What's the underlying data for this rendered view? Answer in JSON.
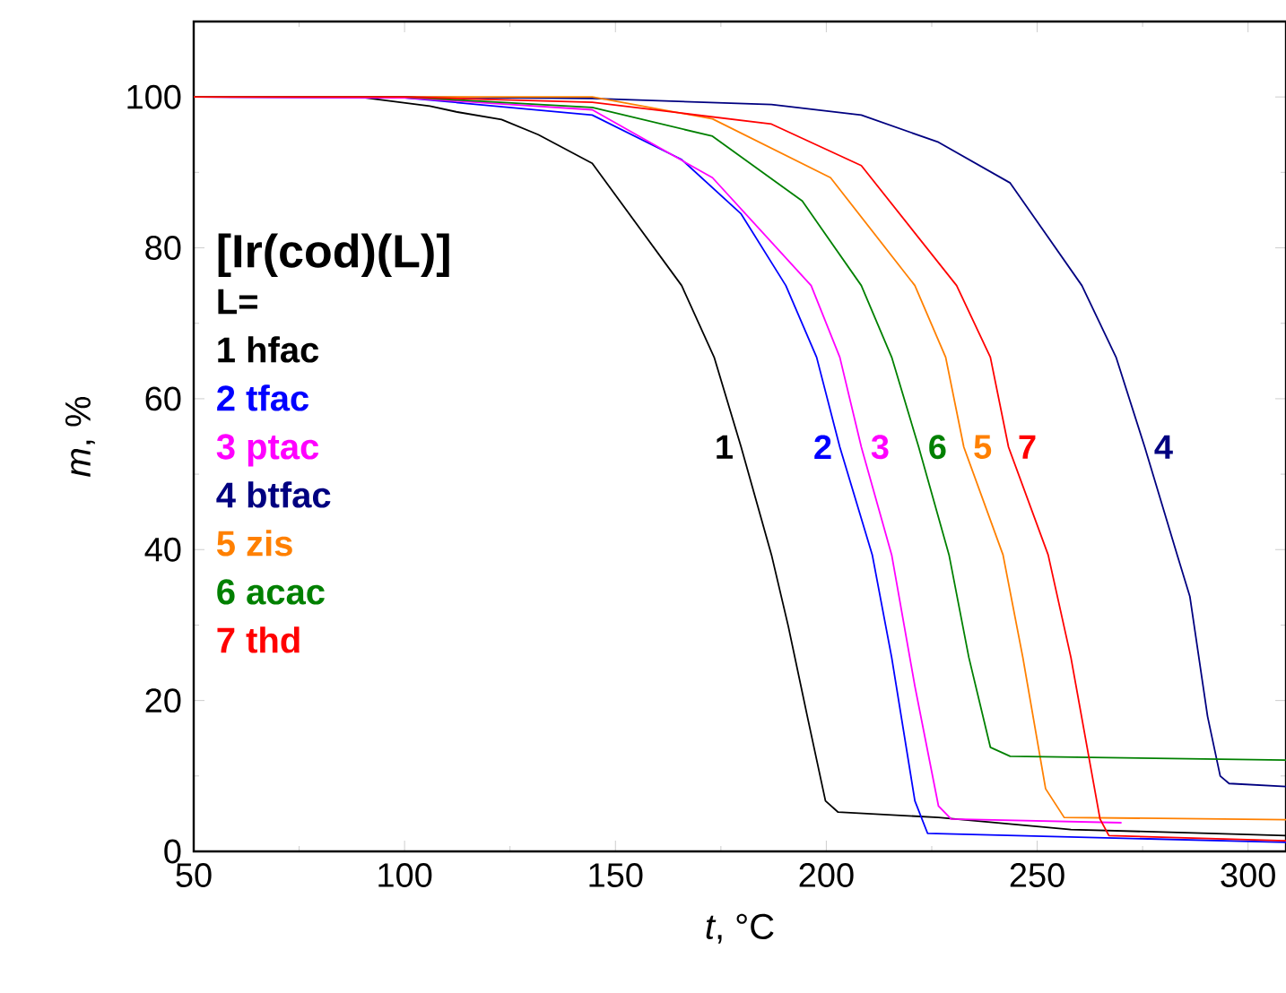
{
  "chart_data": {
    "type": "line",
    "title": "[Ir(cod)(L)]",
    "legend_title": "L=",
    "xlabel": "*t*, °C",
    "ylabel": "*m*, %",
    "xlim": [
      50,
      309
    ],
    "ylim": [
      0,
      110
    ],
    "xticks": [
      50,
      100,
      150,
      200,
      250,
      300
    ],
    "yticks": [
      0,
      20,
      40,
      60,
      80,
      100
    ],
    "legend": "center left",
    "marker": "none",
    "line_style": "solid",
    "grid": false,
    "series": [
      {
        "name": "1 hfac",
        "color": "#000000",
        "x": [
          50,
          89,
          106,
          112.5,
          123,
          131.7,
          144.5,
          165.7,
          173.4,
          179.8,
          187,
          191,
          195.5,
          199.8,
          202.8,
          226.6,
          258,
          309
        ],
        "values": [
          100,
          100,
          98.8,
          98,
          97,
          95,
          91.2,
          75,
          65.5,
          53.6,
          39.3,
          29.8,
          17.9,
          6.7,
          5.2,
          4.5,
          2.9,
          2.1
        ]
      },
      {
        "name": "2 tfac",
        "color": "#0000ff",
        "x": [
          50,
          100,
          144.5,
          165.7,
          179.8,
          190.4,
          197.7,
          203.2,
          210.9,
          215.5,
          221,
          224,
          309
        ],
        "values": [
          100,
          99.9,
          97.6,
          91.7,
          84.5,
          75,
          65.5,
          53.6,
          39.3,
          25.7,
          6.7,
          2.4,
          1.2
        ]
      },
      {
        "name": "3 ptac",
        "color": "#ff00ff",
        "x": [
          50,
          100,
          144.5,
          173,
          196.4,
          203.2,
          208.3,
          215.5,
          221,
          226.6,
          229.6,
          270
        ],
        "values": [
          100,
          99.9,
          98.3,
          89.3,
          75,
          65.5,
          53.6,
          39.3,
          21.9,
          6,
          4.3,
          3.8
        ]
      },
      {
        "name": "4 btfac",
        "color": "#000080",
        "x": [
          50,
          100,
          144.5,
          187,
          208.3,
          226.6,
          243.6,
          260.6,
          268.7,
          275.5,
          283.2,
          286.2,
          290.4,
          293.4,
          295.5,
          309
        ],
        "values": [
          100,
          100,
          99.8,
          99,
          97.6,
          94,
          88.6,
          75,
          65.5,
          53.6,
          39.3,
          33.8,
          17.9,
          10,
          9,
          8.6
        ]
      },
      {
        "name": "5 zis",
        "color": "#ff8000",
        "x": [
          50,
          100,
          144.5,
          173,
          201,
          221,
          228.3,
          232.6,
          241.9,
          246.6,
          252,
          256.4,
          309
        ],
        "values": [
          100,
          100,
          100,
          97.1,
          89.3,
          75,
          65.5,
          53.6,
          39.3,
          25.7,
          8.3,
          4.5,
          4.2
        ]
      },
      {
        "name": "6 acac",
        "color": "#008000",
        "x": [
          50,
          100,
          144.5,
          173,
          194.3,
          208.3,
          215.5,
          221.9,
          229.1,
          233.8,
          238.9,
          243.6,
          309
        ],
        "values": [
          100,
          100,
          98.6,
          94.8,
          86.2,
          75,
          65.5,
          53.6,
          39.3,
          25.7,
          13.8,
          12.6,
          12.1
        ]
      },
      {
        "name": "7 thd",
        "color": "#ff0000",
        "x": [
          50,
          100,
          144.5,
          187,
          208.3,
          230.9,
          238.9,
          243.2,
          252.6,
          258,
          264.9,
          267,
          309
        ],
        "values": [
          100,
          100,
          99.3,
          96.4,
          90.9,
          75,
          65.5,
          53.6,
          39.3,
          25.7,
          4.3,
          2.1,
          1.4
        ]
      }
    ],
    "annotations": [
      "1",
      "2",
      "3",
      "4",
      "5",
      "6",
      "7"
    ]
  }
}
